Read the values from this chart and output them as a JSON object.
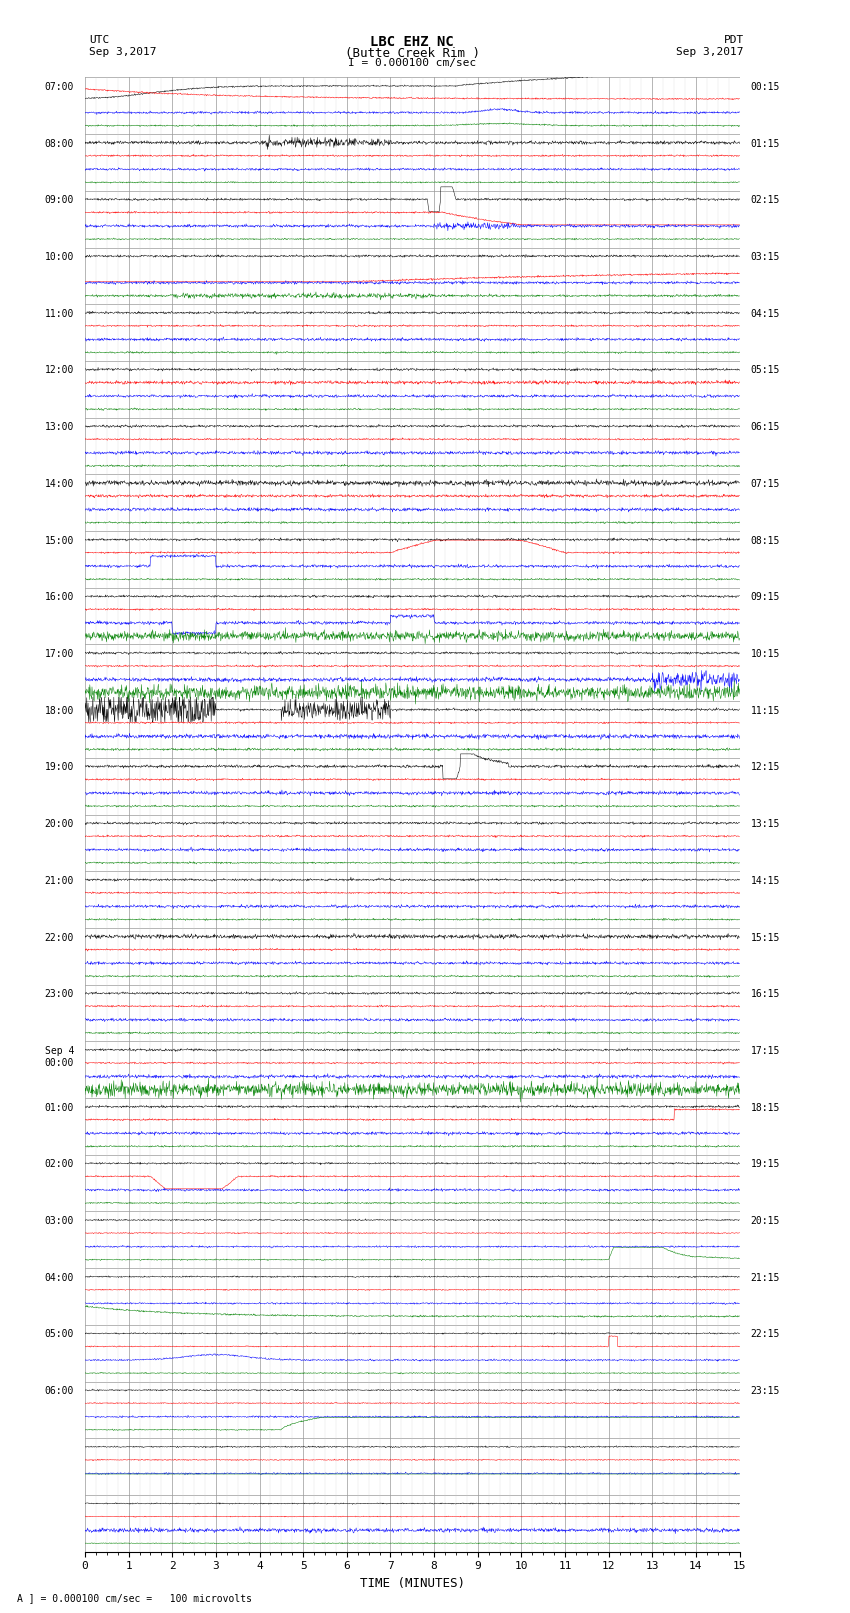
{
  "title_line1": "LBC EHZ NC",
  "title_line2": "(Butte Creek Rim )",
  "scale_label": "I = 0.000100 cm/sec",
  "left_label": "UTC",
  "left_date": "Sep 3,2017",
  "right_label": "PDT",
  "right_date": "Sep 3,2017",
  "xlabel": "TIME (MINUTES)",
  "footnote": "A ] = 0.000100 cm/sec =   100 microvolts",
  "bg_color": "#ffffff",
  "grid_color": "#999999",
  "trace_colors": [
    "black",
    "red",
    "blue",
    "green"
  ],
  "num_rows": 26,
  "left_times": [
    "07:00",
    "08:00",
    "09:00",
    "10:00",
    "11:00",
    "12:00",
    "13:00",
    "14:00",
    "15:00",
    "16:00",
    "17:00",
    "18:00",
    "19:00",
    "20:00",
    "21:00",
    "22:00",
    "23:00",
    "Sep 4\n00:00",
    "01:00",
    "02:00",
    "03:00",
    "04:00",
    "05:00",
    "06:00",
    "",
    ""
  ],
  "right_times": [
    "00:15",
    "01:15",
    "02:15",
    "03:15",
    "04:15",
    "05:15",
    "06:15",
    "07:15",
    "08:15",
    "09:15",
    "10:15",
    "11:15",
    "12:15",
    "13:15",
    "14:15",
    "15:15",
    "16:15",
    "17:15",
    "18:15",
    "19:15",
    "20:15",
    "21:15",
    "22:15",
    "23:15",
    "",
    ""
  ]
}
